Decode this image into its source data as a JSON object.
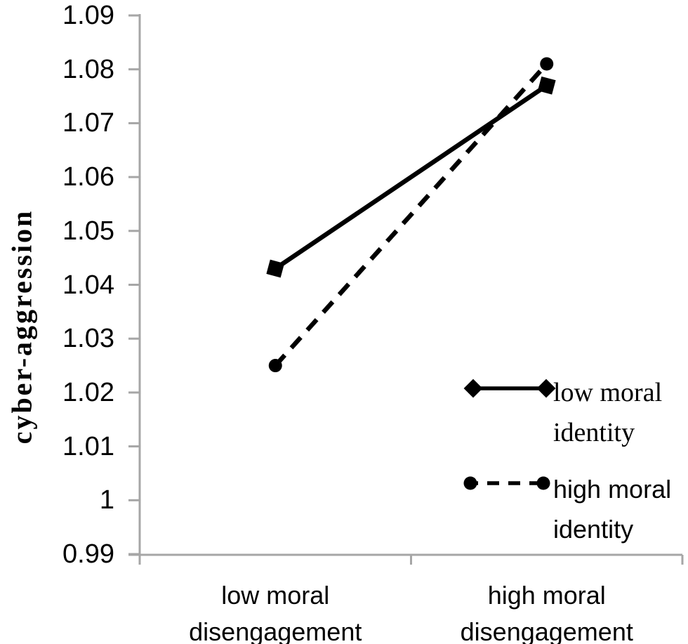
{
  "figure": {
    "background_color": "#ffffff",
    "axis_color": "#a6a6a6",
    "data_color": "#000000",
    "text_color": "#000000"
  },
  "chart_data": {
    "type": "line",
    "title": "",
    "xlabel": "",
    "ylabel": "cyber-aggression",
    "categories": [
      "low moral disengagement",
      "high moral disengagement"
    ],
    "series": [
      {
        "name": "low moral identity",
        "values": [
          1.043,
          1.077
        ],
        "line_style": "solid",
        "marker": "square",
        "legend_marker": "diamond",
        "color": "#000000"
      },
      {
        "name": "high moral identity",
        "values": [
          1.025,
          1.081
        ],
        "line_style": "dashed",
        "marker": "circle",
        "legend_marker": "circle",
        "color": "#000000"
      }
    ],
    "ylim": [
      0.99,
      1.09
    ],
    "ytick_step": 0.01,
    "yticks": [
      "1.09",
      "1.08",
      "1.07",
      "1.06",
      "1.05",
      "1.04",
      "1.03",
      "1.02",
      "1.01",
      "1",
      "0.99"
    ],
    "grid": false,
    "legend_position": "lower right"
  }
}
